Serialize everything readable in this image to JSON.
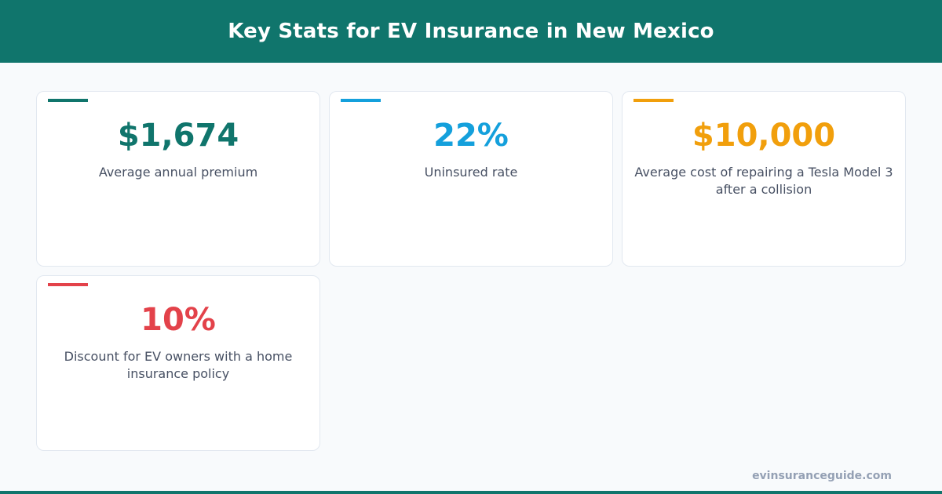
{
  "header": {
    "title": "Key Stats for EV Insurance in New Mexico"
  },
  "cards": [
    {
      "value": "$1,674",
      "label": "Average annual premium",
      "color": "#10756c"
    },
    {
      "value": "22%",
      "label": "Uninsured rate",
      "color": "#14a0dc"
    },
    {
      "value": "$10,000",
      "label": "Average cost of repairing a Tesla Model 3 after a collision",
      "color": "#f19f0c"
    },
    {
      "value": "10%",
      "label": "Discount for EV owners with a home insurance policy",
      "color": "#e3424a"
    }
  ],
  "footer": {
    "site": "evinsuranceguide.com"
  }
}
